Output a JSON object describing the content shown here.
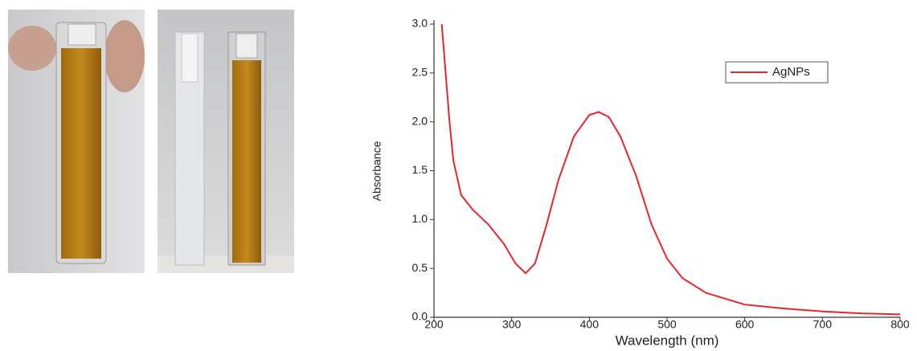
{
  "chart_data": {
    "type": "line",
    "x_label": "Wavelength (nm)",
    "y_label": "Absorbance",
    "x": [
      210,
      215,
      220,
      225,
      235,
      250,
      270,
      290,
      305,
      318,
      330,
      345,
      360,
      380,
      400,
      412,
      425,
      440,
      460,
      480,
      500,
      520,
      550,
      600,
      650,
      700,
      750,
      800
    ],
    "series": [
      {
        "name": "AgNPs",
        "color": "#e8262a",
        "values": [
          3.0,
          2.5,
          2.0,
          1.6,
          1.25,
          1.1,
          0.95,
          0.75,
          0.55,
          0.45,
          0.55,
          0.95,
          1.4,
          1.85,
          2.07,
          2.1,
          2.05,
          1.85,
          1.45,
          0.95,
          0.6,
          0.4,
          0.25,
          0.13,
          0.09,
          0.06,
          0.04,
          0.03
        ]
      }
    ],
    "xlim": [
      200,
      800
    ],
    "xticks": [
      200,
      300,
      400,
      500,
      600,
      700,
      800
    ],
    "ylim": [
      0,
      3
    ],
    "yticks": [
      {
        "value": 0,
        "label": "0.0"
      },
      {
        "value": 0.5,
        "label": "0.5"
      },
      {
        "value": 1,
        "label": "1.0"
      },
      {
        "value": 1.5,
        "label": "1.5"
      },
      {
        "value": 2,
        "label": "2.0"
      },
      {
        "value": 2.5,
        "label": "2.5"
      },
      {
        "value": 3,
        "label": "3.0"
      }
    ],
    "legend": "upper right",
    "grid": false
  }
}
